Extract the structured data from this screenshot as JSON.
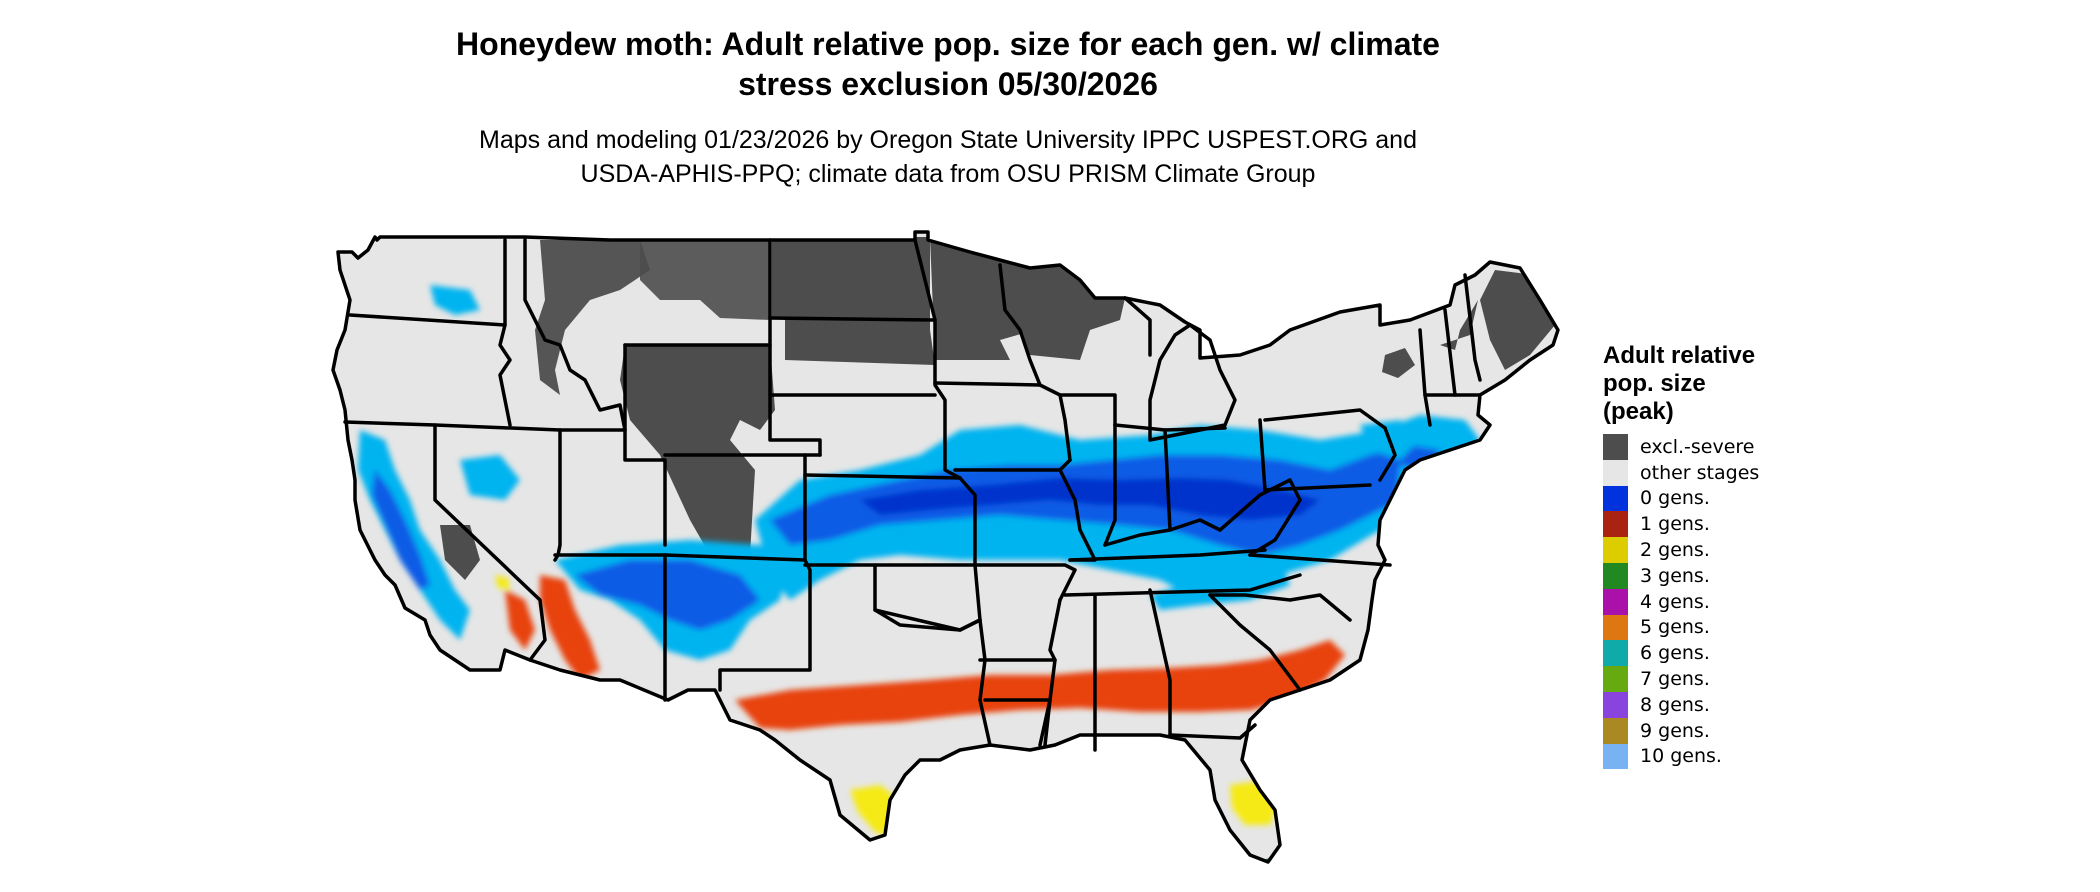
{
  "title_line1": "Honeydew moth: Adult relative pop. size for each gen. w/ climate",
  "title_line2": "stress exclusion 05/30/2026",
  "subtitle_line1": "Maps and modeling 01/23/2026 by Oregon State University IPPC USPEST.ORG and",
  "subtitle_line2": "USDA-APHIS-PPQ; climate data from OSU PRISM Climate Group",
  "legend": {
    "title_line1": "Adult relative",
    "title_line2": "pop. size",
    "title_line3": "(peak)",
    "items": [
      {
        "label": "excl.-severe",
        "color": "#4d4d4d"
      },
      {
        "label": "other stages",
        "color": "#e6e6e6"
      },
      {
        "label": "0 gens.",
        "color": "#0033dd"
      },
      {
        "label": "1 gens.",
        "color": "#aa2211"
      },
      {
        "label": "2 gens.",
        "color": "#ddcc00"
      },
      {
        "label": "3 gens.",
        "color": "#228822"
      },
      {
        "label": "4 gens.",
        "color": "#aa11aa"
      },
      {
        "label": "5 gens.",
        "color": "#dd7711"
      },
      {
        "label": "6 gens.",
        "color": "#11aaaa"
      },
      {
        "label": "7 gens.",
        "color": "#66aa11"
      },
      {
        "label": "8 gens.",
        "color": "#8844dd"
      },
      {
        "label": "9 gens.",
        "color": "#aa8822"
      },
      {
        "label": "10 gens.",
        "color": "#77b3f2"
      }
    ]
  },
  "map_colors": {
    "land": "#e6e6e6",
    "excluded": "#4d4d4d",
    "light_blue": "#00b4f0",
    "blue": "#0a5be6",
    "dark_blue": "#0033cc",
    "orange_red": "#e8420a",
    "yellow": "#f5ea14",
    "green": "#1f9e3a",
    "border": "#000000"
  }
}
